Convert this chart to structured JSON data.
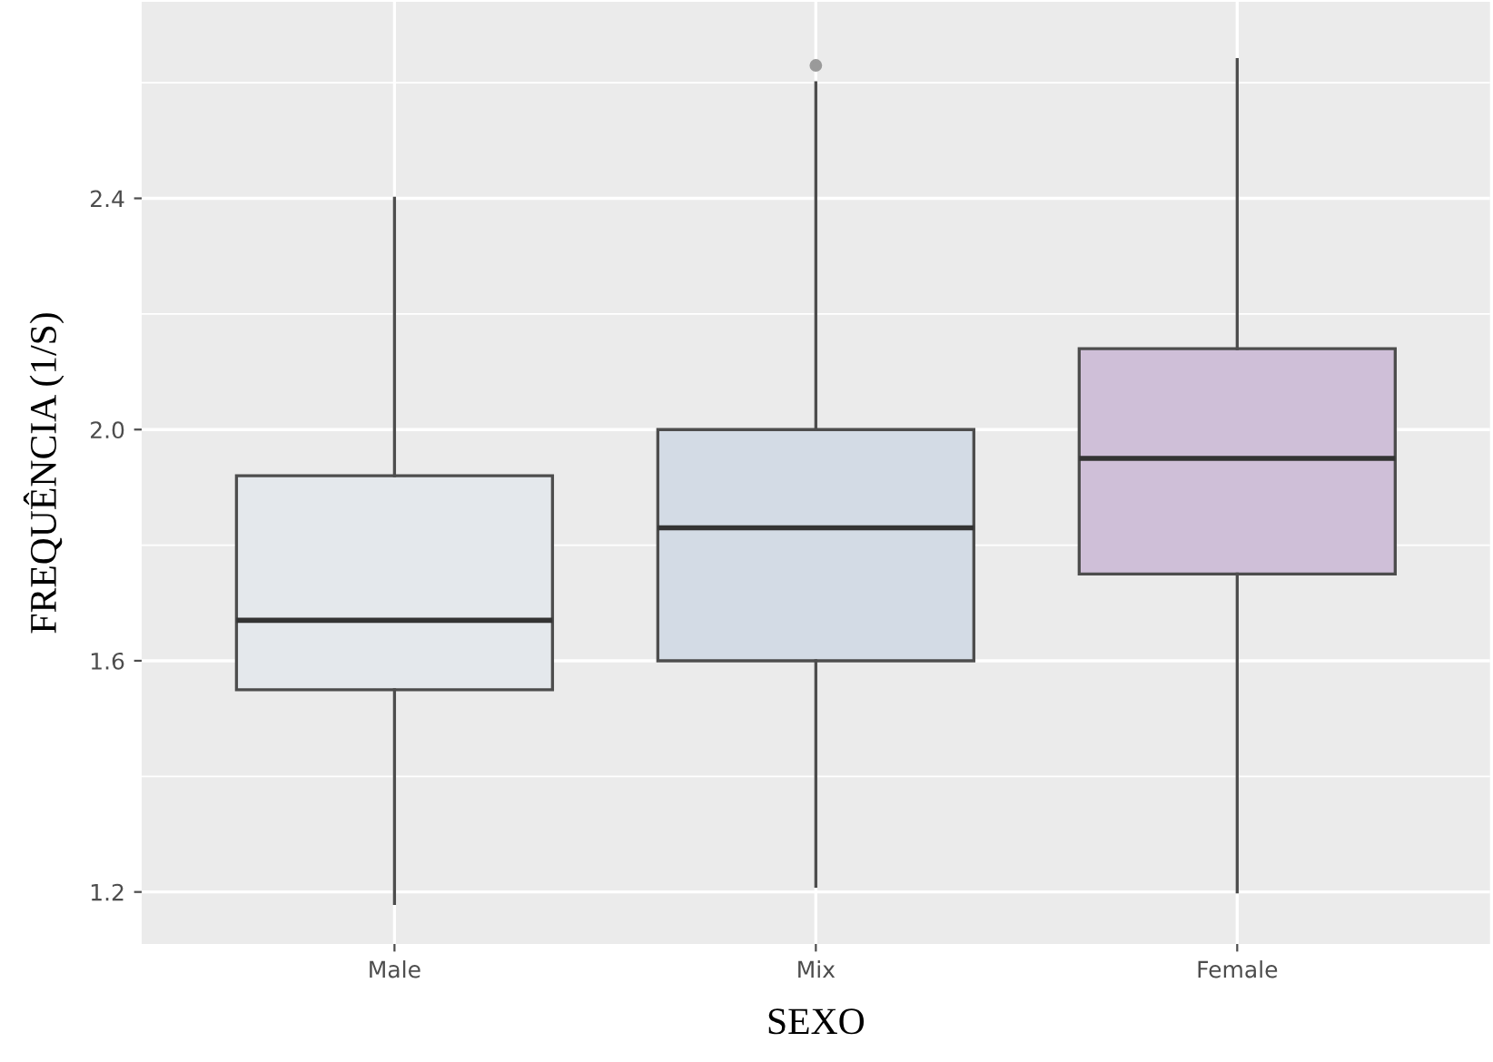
{
  "chart_data": {
    "type": "box",
    "xlabel": "SEXO",
    "ylabel": "FREQUÊNCIA (1/S)",
    "categories": [
      "Male",
      "Mix",
      "Female"
    ],
    "colors": [
      "#e4e8ec",
      "#d3dbe5",
      "#cfbfd8"
    ],
    "boxes": [
      {
        "low": 1.18,
        "q1": 1.55,
        "median": 1.67,
        "q3": 1.92,
        "high": 2.4
      },
      {
        "low": 1.21,
        "q1": 1.6,
        "median": 1.83,
        "q3": 2.0,
        "high": 2.6,
        "outliers": [
          2.63
        ]
      },
      {
        "low": 1.2,
        "q1": 1.75,
        "median": 1.95,
        "q3": 2.14,
        "high": 2.64
      }
    ],
    "ylim": [
      1.11,
      2.74
    ],
    "yticks": [
      1.2,
      1.6,
      {
        "value": 2.0,
        "label": "2.0"
      },
      2.4
    ],
    "grid": true
  }
}
